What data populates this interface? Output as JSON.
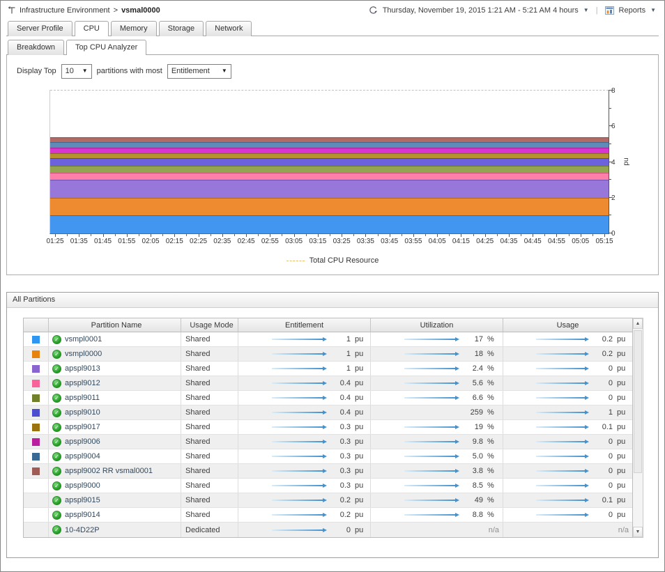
{
  "header": {
    "breadcrumb": {
      "root": "Infrastructure Environment",
      "separator": ">",
      "current": "vsmal0000"
    },
    "time_range": "Thursday, November 19, 2015 1:21 AM - 5:21 AM 4 hours",
    "reports_label": "Reports"
  },
  "tabs": {
    "items": [
      "Server Profile",
      "CPU",
      "Memory",
      "Storage",
      "Network"
    ],
    "active": "CPU"
  },
  "subtabs": {
    "items": [
      "Breakdown",
      "Top CPU Analyzer"
    ],
    "active": "Top CPU Analyzer"
  },
  "controls": {
    "display_top_label": "Display Top",
    "top_count": "10",
    "middle_label": "partitions with most",
    "metric": "Entitlement"
  },
  "chart_data": {
    "type": "area",
    "stacked": true,
    "title": "",
    "ylabel": "pu",
    "ylim": [
      0,
      8
    ],
    "y_ticks_major": [
      0,
      2,
      4,
      6,
      8
    ],
    "y_minor_step": 1,
    "x": [
      "01:25",
      "01:35",
      "01:45",
      "01:55",
      "02:05",
      "02:15",
      "02:25",
      "02:35",
      "02:45",
      "02:55",
      "03:05",
      "03:15",
      "03:25",
      "03:35",
      "03:45",
      "03:55",
      "04:05",
      "04:15",
      "04:25",
      "04:35",
      "04:45",
      "04:55",
      "05:05",
      "05:15"
    ],
    "total_line": {
      "label": "Total CPU Resource",
      "value": 8,
      "color": "#e9be6b",
      "style": "dashed"
    },
    "series_note": "constant entitlement bands, stacked bottom to top, total 5.4 pu",
    "series": [
      {
        "name": "vsmpl0001",
        "value": 1.0,
        "color": "#4296ef",
        "edge": "#2a6fc0"
      },
      {
        "name": "vsmpl0000",
        "value": 1.0,
        "color": "#ee8b30",
        "edge": "#b5621a"
      },
      {
        "name": "apspl9013",
        "value": 1.0,
        "color": "#9877db",
        "edge": "#6f50b0"
      },
      {
        "name": "apspl9012",
        "value": 0.4,
        "color": "#ff7fa9",
        "edge": "#d14f7e"
      },
      {
        "name": "apspl9011",
        "value": 0.4,
        "color": "#93a551",
        "edge": "#6c7c33"
      },
      {
        "name": "apspl9010",
        "value": 0.4,
        "color": "#6c63dc",
        "edge": "#4a42b5"
      },
      {
        "name": "apspl9017",
        "value": 0.3,
        "color": "#b6912e",
        "edge": "#8a6c1c"
      },
      {
        "name": "apspl9006",
        "value": 0.3,
        "color": "#d834ce",
        "edge": "#a81f9e"
      },
      {
        "name": "apspl9004",
        "value": 0.3,
        "color": "#5e8bb7",
        "edge": "#3e6890"
      },
      {
        "name": "apspl9002 RR vsmal0001",
        "value": 0.3,
        "color": "#b16a66",
        "edge": "#8a4b47"
      }
    ]
  },
  "partitions_panel": {
    "title": "All Partitions",
    "columns": [
      "",
      "Partition Name",
      "Usage Mode",
      "Entitlement",
      "Utilization",
      "Usage"
    ],
    "rows": [
      {
        "color": "#2e96f0",
        "name": "vsmpl0001",
        "mode": "Shared",
        "entitlement": {
          "value": "1",
          "unit": "pu",
          "line": true
        },
        "utilization": {
          "value": "17",
          "unit": "%",
          "line": true
        },
        "usage": {
          "value": "0.2",
          "unit": "pu",
          "line": true
        }
      },
      {
        "color": "#e8820e",
        "name": "vsmpl0000",
        "mode": "Shared",
        "entitlement": {
          "value": "1",
          "unit": "pu",
          "line": true
        },
        "utilization": {
          "value": "18",
          "unit": "%",
          "line": true
        },
        "usage": {
          "value": "0.2",
          "unit": "pu",
          "line": true
        }
      },
      {
        "color": "#8b65cf",
        "name": "apspl9013",
        "mode": "Shared",
        "entitlement": {
          "value": "1",
          "unit": "pu",
          "line": true
        },
        "utilization": {
          "value": "2.4",
          "unit": "%",
          "line": true
        },
        "usage": {
          "value": "0",
          "unit": "pu",
          "line": true
        }
      },
      {
        "color": "#f9639c",
        "name": "apspl9012",
        "mode": "Shared",
        "entitlement": {
          "value": "0.4",
          "unit": "pu",
          "line": true
        },
        "utilization": {
          "value": "5.6",
          "unit": "%",
          "line": true
        },
        "usage": {
          "value": "0",
          "unit": "pu",
          "line": true
        }
      },
      {
        "color": "#71802b",
        "name": "apspl9011",
        "mode": "Shared",
        "entitlement": {
          "value": "0.4",
          "unit": "pu",
          "line": true
        },
        "utilization": {
          "value": "6.6",
          "unit": "%",
          "line": true
        },
        "usage": {
          "value": "0",
          "unit": "pu",
          "line": true
        }
      },
      {
        "color": "#4c4fd0",
        "name": "apspl9010",
        "mode": "Shared",
        "entitlement": {
          "value": "0.4",
          "unit": "pu",
          "line": true
        },
        "utilization": {
          "value": "259",
          "unit": "%",
          "line": false
        },
        "usage": {
          "value": "1",
          "unit": "pu",
          "line": true
        }
      },
      {
        "color": "#9c720e",
        "name": "apspl9017",
        "mode": "Shared",
        "entitlement": {
          "value": "0.3",
          "unit": "pu",
          "line": true
        },
        "utilization": {
          "value": "19",
          "unit": "%",
          "line": true
        },
        "usage": {
          "value": "0.1",
          "unit": "pu",
          "line": true
        }
      },
      {
        "color": "#ba1d9e",
        "name": "apspl9006",
        "mode": "Shared",
        "entitlement": {
          "value": "0.3",
          "unit": "pu",
          "line": true
        },
        "utilization": {
          "value": "9.8",
          "unit": "%",
          "line": true
        },
        "usage": {
          "value": "0",
          "unit": "pu",
          "line": true
        }
      },
      {
        "color": "#3a6a92",
        "name": "apspl9004",
        "mode": "Shared",
        "entitlement": {
          "value": "0.3",
          "unit": "pu",
          "line": true
        },
        "utilization": {
          "value": "5.0",
          "unit": "%",
          "line": true
        },
        "usage": {
          "value": "0",
          "unit": "pu",
          "line": true
        }
      },
      {
        "color": "#a05b55",
        "name": "apspl9002 RR vsmal0001",
        "mode": "Shared",
        "entitlement": {
          "value": "0.3",
          "unit": "pu",
          "line": true
        },
        "utilization": {
          "value": "3.8",
          "unit": "%",
          "line": true
        },
        "usage": {
          "value": "0",
          "unit": "pu",
          "line": true
        }
      },
      {
        "color": null,
        "name": "apspl9000",
        "mode": "Shared",
        "entitlement": {
          "value": "0.3",
          "unit": "pu",
          "line": true
        },
        "utilization": {
          "value": "8.5",
          "unit": "%",
          "line": true
        },
        "usage": {
          "value": "0",
          "unit": "pu",
          "line": true
        }
      },
      {
        "color": null,
        "name": "apspl9015",
        "mode": "Shared",
        "entitlement": {
          "value": "0.2",
          "unit": "pu",
          "line": true
        },
        "utilization": {
          "value": "49",
          "unit": "%",
          "line": true
        },
        "usage": {
          "value": "0.1",
          "unit": "pu",
          "line": true
        }
      },
      {
        "color": null,
        "name": "apspl9014",
        "mode": "Shared",
        "entitlement": {
          "value": "0.2",
          "unit": "pu",
          "line": true
        },
        "utilization": {
          "value": "8.8",
          "unit": "%",
          "line": true
        },
        "usage": {
          "value": "0",
          "unit": "pu",
          "line": true
        }
      },
      {
        "color": null,
        "name": "10-4D22P",
        "mode": "Dedicated",
        "entitlement": {
          "value": "0",
          "unit": "pu",
          "line": true
        },
        "utilization": {
          "value": "n/a",
          "unit": "",
          "line": false,
          "na": true
        },
        "usage": {
          "value": "n/a",
          "unit": "",
          "line": false,
          "na": true
        }
      }
    ]
  }
}
